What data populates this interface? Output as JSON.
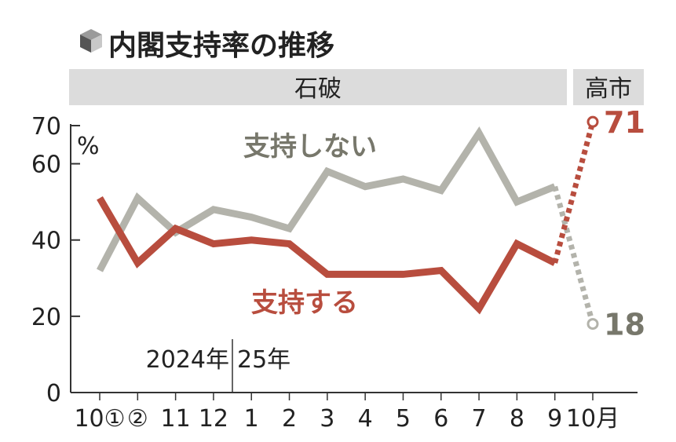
{
  "title": "内閣支持率の推移",
  "title_icon": "cube-icon",
  "eras": [
    {
      "name": "石破"
    },
    {
      "name": "高市"
    }
  ],
  "colors": {
    "support": "#b84d3e",
    "nonsupport": "#b3b3ab",
    "support_label": "#b84d3e",
    "nonsupport_label": "#77776b",
    "era_band": "#dcdcdc",
    "axis": "#333333"
  },
  "chart_data": {
    "type": "line",
    "unit": "%",
    "ylim": [
      0,
      70
    ],
    "y_ticks": [
      0,
      20,
      40,
      60,
      70
    ],
    "categories": [
      "10①",
      "②",
      "11",
      "12",
      "1",
      "2",
      "3",
      "4",
      "5",
      "6",
      "7",
      "8",
      "9",
      "10月"
    ],
    "year_labels": [
      {
        "label": "2024年",
        "at_category": 2
      },
      {
        "label": "25年",
        "at_category": 4
      }
    ],
    "series": [
      {
        "name": "支持しない",
        "values": [
          32,
          51,
          42,
          48,
          46,
          43,
          58,
          54,
          56,
          53,
          68,
          50,
          54,
          18
        ],
        "end_label": "18",
        "last_segment_dotted": true
      },
      {
        "name": "支持する",
        "values": [
          51,
          34,
          43,
          39,
          40,
          39,
          31,
          31,
          31,
          32,
          22,
          39,
          34,
          71
        ],
        "end_label": "71",
        "last_segment_dotted": true
      }
    ],
    "grid": false
  }
}
